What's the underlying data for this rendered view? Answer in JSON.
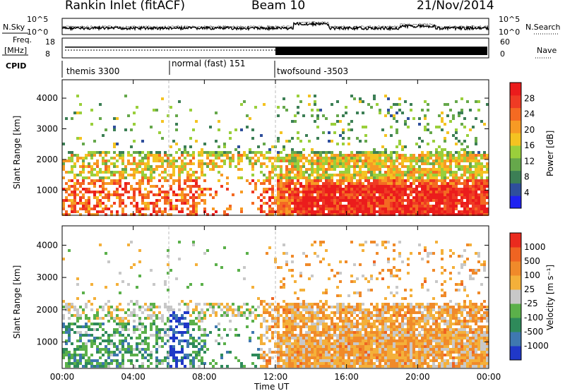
{
  "header": {
    "title": "Rankin Inlet (fitACF)",
    "beam": "Beam 10",
    "date": "21/Nov/2014"
  },
  "strips": {
    "nsky_label": "N.Sky",
    "nsearch_label": "N.Search",
    "noise_ticks_left": [
      "10^5",
      "10^0"
    ],
    "noise_ticks_right": [
      "10^5",
      "10^0"
    ],
    "freq_label": "Freq.",
    "freq_unit": "[MHz]",
    "freq_ticks": [
      "18",
      "8"
    ],
    "nave_label": "Nave",
    "nave_ticks": [
      "60",
      "0"
    ],
    "cpid_label": "CPID",
    "cpid_segments": [
      {
        "label": "themis 3300",
        "start_hour": 0,
        "end_hour": 6
      },
      {
        "label": "normal (fast) 151",
        "start_hour": 6,
        "end_hour": 12
      },
      {
        "label": "twofsound -3503",
        "start_hour": 12,
        "end_hour": 24
      }
    ]
  },
  "chart_data": [
    {
      "type": "heatmap",
      "name": "power_panel",
      "xlabel": "Time UT",
      "ylabel": "Slant Range [km]",
      "x_ticks": [
        "00:00",
        "04:00",
        "08:00",
        "12:00",
        "16:00",
        "20:00",
        "00:00"
      ],
      "y_ticks": [
        1000,
        2000,
        3000,
        4000
      ],
      "xlim_hours": [
        0,
        24
      ],
      "ylim_km": [
        180,
        4600
      ],
      "colorbar": {
        "label": "Power [dB]",
        "ticks": [
          "28",
          "24",
          "20",
          "16",
          "12",
          "8",
          "4"
        ],
        "colors": [
          "#1f22f0",
          "#2f4f9c",
          "#3c7f55",
          "#66a84b",
          "#9acf3b",
          "#f4c321",
          "#f79a24",
          "#f46a22",
          "#ef3b24",
          "#eb1c1c"
        ]
      }
    },
    {
      "type": "heatmap",
      "name": "velocity_panel",
      "xlabel": "Time UT",
      "ylabel": "Slant Range [km]",
      "x_ticks": [
        "00:00",
        "04:00",
        "08:00",
        "12:00",
        "16:00",
        "20:00",
        "00:00"
      ],
      "y_ticks": [
        1000,
        2000,
        3000,
        4000
      ],
      "xlim_hours": [
        0,
        24
      ],
      "ylim_km": [
        180,
        4600
      ],
      "colorbar": {
        "label": "Velocity [m s⁻¹]",
        "ticks": [
          "1000",
          "500",
          "100",
          "25",
          "-25",
          "-100",
          "-500",
          "-1000"
        ],
        "colors": [
          "#2038c8",
          "#3f78b0",
          "#2e8a5a",
          "#5bb04a",
          "#c8c8c8",
          "#f4b03a",
          "#f08a2a",
          "#ef6422",
          "#ea2a1e"
        ]
      }
    }
  ],
  "time_axis": {
    "label": "Time UT",
    "ticks": [
      "00:00",
      "04:00",
      "08:00",
      "12:00",
      "16:00",
      "20:00",
      "00:00"
    ]
  }
}
